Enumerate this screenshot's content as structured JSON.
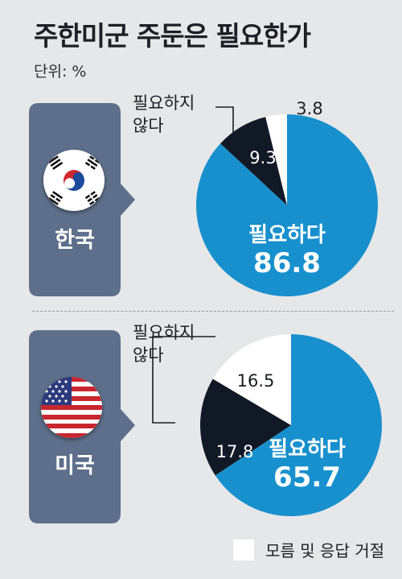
{
  "title": "주한미군 주둔은 필요한가",
  "unit": "단위: %",
  "colors": {
    "necessary": "#1890cd",
    "not_necessary": "#121926",
    "no_answer": "#ffffff",
    "panel": "#5d6f8a",
    "leader": "#1b1e24"
  },
  "legend": {
    "label": "모름 및 응답 거절"
  },
  "chart_data": [
    {
      "type": "pie",
      "country": "한국",
      "flag": "south-korea-flag-icon",
      "series": [
        {
          "name": "필요하다",
          "value": 86.8
        },
        {
          "name": "필요하지 않다",
          "value": 9.3
        },
        {
          "name": "모름 및 응답 거절",
          "value": 3.8
        }
      ]
    },
    {
      "type": "pie",
      "country": "미국",
      "flag": "usa-flag-icon",
      "series": [
        {
          "name": "필요하다",
          "value": 65.7
        },
        {
          "name": "필요하지 않다",
          "value": 17.8
        },
        {
          "name": "모름 및 응답 거절",
          "value": 16.5
        }
      ]
    }
  ]
}
